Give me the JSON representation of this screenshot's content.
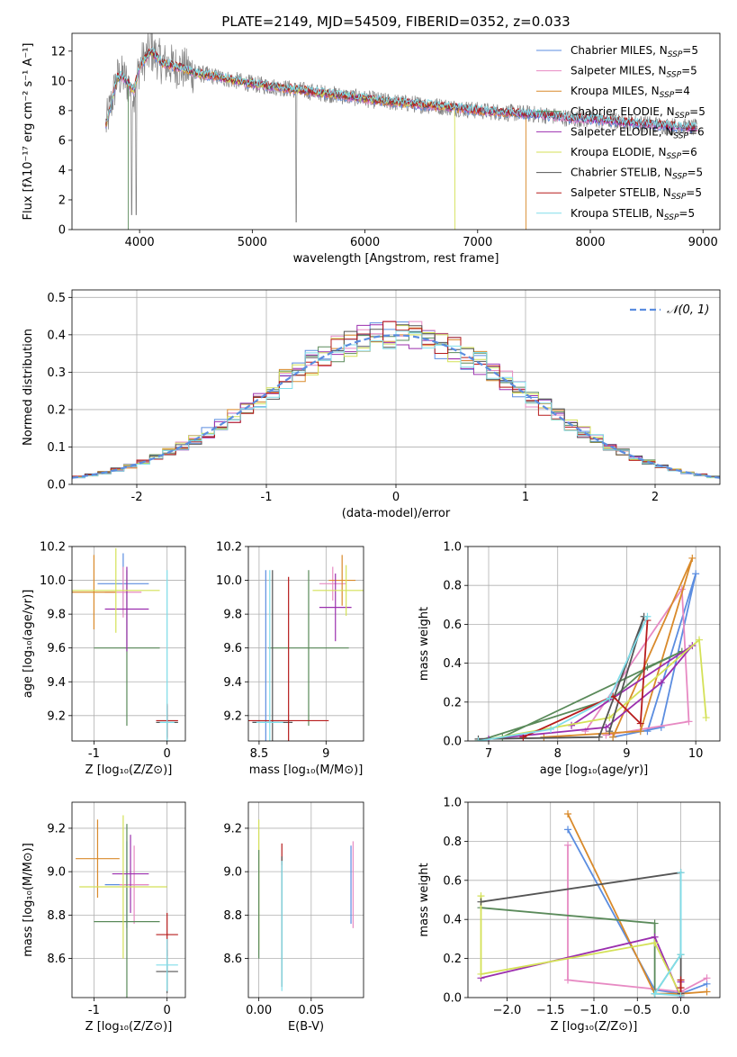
{
  "colors": {
    "chabrier_miles": "#5b8de0",
    "salpeter_miles": "#e78ac3",
    "kroupa_miles": "#d98a2b",
    "chabrier_elodie": "#5a8a5a",
    "salpeter_elodie": "#9b2fae",
    "kroupa_elodie": "#d4e157",
    "chabrier_stelib": "#555555",
    "salpeter_stelib": "#b71c1c",
    "kroupa_stelib": "#80deea",
    "spectrum_data": "#808080",
    "gaussian": "#5b8de0"
  },
  "chart_data": [
    {
      "id": "spectrum",
      "type": "line",
      "title": "PLATE=2149, MJD=54509, FIBERID=0352, z=0.033",
      "xlabel": "wavelength [Angstrom, rest frame]",
      "ylabel": "Flux [fλ10⁻¹⁷ erg cm⁻² s⁻¹ A⁻¹]",
      "xlim": [
        3400,
        9150
      ],
      "ylim": [
        0,
        13.2
      ],
      "xticks": [
        4000,
        5000,
        6000,
        7000,
        8000,
        9000
      ],
      "yticks": [
        0,
        2,
        4,
        6,
        8,
        10,
        12
      ],
      "grid": false,
      "legend_position": "top-right",
      "legend": [
        {
          "label": "Chabrier MILES, N",
          "sub": "SSP",
          "suffix": "=5",
          "color_key": "chabrier_miles"
        },
        {
          "label": "Salpeter MILES, N",
          "sub": "SSP",
          "suffix": "=5",
          "color_key": "salpeter_miles"
        },
        {
          "label": "Kroupa MILES, N",
          "sub": "SSP",
          "suffix": "=4",
          "color_key": "kroupa_miles"
        },
        {
          "label": "Chabrier ELODIE, N",
          "sub": "SSP",
          "suffix": "=5",
          "color_key": "chabrier_elodie"
        },
        {
          "label": "Salpeter ELODIE, N",
          "sub": "SSP",
          "suffix": "=6",
          "color_key": "salpeter_elodie"
        },
        {
          "label": "Kroupa ELODIE, N",
          "sub": "SSP",
          "suffix": "=6",
          "color_key": "kroupa_elodie"
        },
        {
          "label": "Chabrier STELIB, N",
          "sub": "SSP",
          "suffix": "=5",
          "color_key": "chabrier_stelib"
        },
        {
          "label": "Salpeter STELIB, N",
          "sub": "SSP",
          "suffix": "=5",
          "color_key": "salpeter_stelib"
        },
        {
          "label": "Kroupa STELIB, N",
          "sub": "SSP",
          "suffix": "=5",
          "color_key": "kroupa_stelib"
        }
      ],
      "model_curve": {
        "x": [
          3700,
          3750,
          3800,
          3850,
          3900,
          3950,
          4000,
          4100,
          4200,
          4300,
          4400,
          4500,
          4600,
          4800,
          5000,
          5200,
          5500,
          5800,
          6000,
          6200,
          6500,
          6800,
          7000,
          7200,
          7400,
          7600,
          7800,
          8000,
          8200,
          8500,
          8800,
          9000
        ],
        "y": [
          7.0,
          8.5,
          10.2,
          10.3,
          9.8,
          9.3,
          11.0,
          12.0,
          11.2,
          11.0,
          10.8,
          10.5,
          10.4,
          10.1,
          9.8,
          9.6,
          9.3,
          9.0,
          8.8,
          8.6,
          8.4,
          8.2,
          8.0,
          7.9,
          7.8,
          7.7,
          7.5,
          7.4,
          7.3,
          7.1,
          6.9,
          6.8
        ]
      },
      "cutoffs": [
        {
          "x": 7430,
          "color_key": "kroupa_miles"
        },
        {
          "x": 6800,
          "color_key": "kroupa_elodie"
        },
        {
          "x": 3900,
          "color_key": "chabrier_elodie"
        }
      ]
    },
    {
      "id": "residuals",
      "type": "histogram",
      "xlabel": "(data-model)/error",
      "ylabel": "Normed distribution",
      "xlim": [
        -2.5,
        2.5
      ],
      "ylim": [
        0,
        0.52
      ],
      "xticks": [
        -2,
        -1,
        0,
        1,
        2
      ],
      "yticks": [
        0.0,
        0.1,
        0.2,
        0.3,
        0.4,
        0.5
      ],
      "grid": true,
      "legend_position": "top-right",
      "legend": [
        {
          "label": "𝒩(0, 1)",
          "color_key": "gaussian",
          "style": "dashed"
        }
      ],
      "bin_width": 0.1
    },
    {
      "id": "age_vs_Z",
      "type": "errorbar",
      "xlabel": "Z [log₁₀(Z/Z⊙)]",
      "ylabel": "age  [log₁₀(age/yr)]",
      "xlim": [
        -1.3,
        0.25
      ],
      "ylim": [
        9.05,
        10.2
      ],
      "xticks": [
        -1,
        0
      ],
      "yticks": [
        9.2,
        9.4,
        9.6,
        9.8,
        10.0,
        10.2
      ],
      "grid": true,
      "points": [
        {
          "x": -0.6,
          "xe": 0.35,
          "y": 9.98,
          "ye": 0.18,
          "color_key": "chabrier_miles"
        },
        {
          "x": -0.6,
          "xe": 0.25,
          "y": 9.93,
          "ye": 0.15,
          "color_key": "salpeter_miles"
        },
        {
          "x": -1.0,
          "xe": 0.3,
          "y": 9.93,
          "ye": 0.22,
          "color_key": "kroupa_miles"
        },
        {
          "x": -0.55,
          "xe": 0.45,
          "y": 9.6,
          "ye": 0.46,
          "color_key": "chabrier_elodie"
        },
        {
          "x": -0.55,
          "xe": 0.3,
          "y": 9.83,
          "ye": 0.25,
          "color_key": "salpeter_elodie"
        },
        {
          "x": -0.7,
          "xe": 0.6,
          "y": 9.94,
          "ye": 0.25,
          "color_key": "kroupa_elodie"
        },
        {
          "x": 0.0,
          "xe": 0.15,
          "y": 9.16,
          "ye": 0.1,
          "color_key": "chabrier_stelib"
        },
        {
          "x": 0.0,
          "xe": 0.15,
          "y": 9.17,
          "ye": 0.1,
          "color_key": "salpeter_stelib"
        },
        {
          "x": 0.0,
          "xe": 0.1,
          "y": 9.16,
          "ye": 0.9,
          "color_key": "kroupa_stelib"
        }
      ]
    },
    {
      "id": "age_vs_mass",
      "type": "errorbar",
      "xlabel": "mass [log₁₀(M/M⊙)]",
      "ylabel": "",
      "xlim": [
        8.42,
        9.28
      ],
      "ylim": [
        9.05,
        10.2
      ],
      "xticks": [
        8.5,
        9.0
      ],
      "yticks": [
        9.2,
        9.4,
        9.6,
        9.8,
        10.0,
        10.2
      ],
      "grid": true,
      "points": [
        {
          "x": 8.55,
          "xe": 0.1,
          "y": 9.16,
          "ye": 0.9,
          "color_key": "chabrier_miles"
        },
        {
          "x": 9.05,
          "xe": 0.1,
          "y": 9.98,
          "ye": 0.1,
          "color_key": "salpeter_miles"
        },
        {
          "x": 9.12,
          "xe": 0.1,
          "y": 10.0,
          "ye": 0.15,
          "color_key": "kroupa_miles"
        },
        {
          "x": 8.87,
          "xe": 0.3,
          "y": 9.6,
          "ye": 0.46,
          "color_key": "chabrier_elodie"
        },
        {
          "x": 9.07,
          "xe": 0.12,
          "y": 9.84,
          "ye": 0.2,
          "color_key": "salpeter_elodie"
        },
        {
          "x": 9.15,
          "xe": 0.25,
          "y": 9.94,
          "ye": 0.15,
          "color_key": "kroupa_elodie"
        },
        {
          "x": 8.6,
          "xe": 0.15,
          "y": 9.16,
          "ye": 0.9,
          "color_key": "chabrier_stelib"
        },
        {
          "x": 8.72,
          "xe": 0.3,
          "y": 9.17,
          "ye": 0.85,
          "color_key": "salpeter_stelib"
        },
        {
          "x": 8.58,
          "xe": 0.1,
          "y": 9.16,
          "ye": 0.9,
          "color_key": "kroupa_stelib"
        }
      ]
    },
    {
      "id": "weight_vs_age",
      "type": "line",
      "xlabel": "age  [log₁₀(age/yr)]",
      "ylabel": "mass weight",
      "xlim": [
        6.7,
        10.35
      ],
      "ylim": [
        0,
        1.0
      ],
      "xticks": [
        7,
        8,
        9,
        10
      ],
      "yticks": [
        0.0,
        0.2,
        0.4,
        0.6,
        0.8,
        1.0
      ],
      "grid": true,
      "series": [
        {
          "color_key": "chabrier_miles",
          "x": [
            8.8,
            9.5,
            10.0,
            9.3
          ],
          "y": [
            0.02,
            0.07,
            0.86,
            0.05
          ]
        },
        {
          "color_key": "salpeter_miles",
          "x": [
            8.7,
            9.9,
            9.8,
            8.4
          ],
          "y": [
            0.03,
            0.1,
            0.78,
            0.05
          ]
        },
        {
          "color_key": "kroupa_miles",
          "x": [
            8.8,
            9.95,
            9.2,
            7.8
          ],
          "y": [
            0.02,
            0.94,
            0.05,
            0.02
          ]
        },
        {
          "color_key": "chabrier_elodie",
          "x": [
            6.85,
            8.8,
            9.3,
            9.8,
            7.2
          ],
          "y": [
            0.0,
            0.22,
            0.38,
            0.46,
            0.02
          ]
        },
        {
          "color_key": "salpeter_elodie",
          "x": [
            7.0,
            8.7,
            9.5,
            9.95,
            8.2
          ],
          "y": [
            0.01,
            0.07,
            0.3,
            0.49,
            0.08
          ]
        },
        {
          "color_key": "kroupa_elodie",
          "x": [
            6.85,
            8.75,
            10.05,
            10.15
          ],
          "y": [
            0.0,
            0.12,
            0.52,
            0.12
          ]
        },
        {
          "color_key": "chabrier_stelib",
          "x": [
            6.85,
            8.6,
            9.25,
            8.75
          ],
          "y": [
            0.01,
            0.02,
            0.64,
            0.05
          ]
        },
        {
          "color_key": "salpeter_stelib",
          "x": [
            7.5,
            8.8,
            9.2,
            9.3
          ],
          "y": [
            0.02,
            0.23,
            0.09,
            0.62
          ]
        },
        {
          "color_key": "kroupa_stelib",
          "x": [
            6.85,
            7.9,
            8.75,
            9.3
          ],
          "y": [
            0.0,
            0.06,
            0.22,
            0.64
          ]
        }
      ]
    },
    {
      "id": "mass_vs_Z",
      "type": "errorbar",
      "xlabel": "Z [log₁₀(Z/Z⊙)]",
      "ylabel": "mass [log₁₀(M/M⊙)]",
      "xlim": [
        -1.3,
        0.25
      ],
      "ylim": [
        8.42,
        9.32
      ],
      "xticks": [
        -1,
        0
      ],
      "yticks": [
        8.6,
        8.8,
        9.0,
        9.2
      ],
      "grid": true,
      "points": [
        {
          "x": -0.55,
          "xe": 0.3,
          "y": 8.94,
          "ye": 0.2,
          "color_key": "chabrier_miles"
        },
        {
          "x": -0.45,
          "xe": 0.2,
          "y": 8.94,
          "ye": 0.18,
          "color_key": "salpeter_miles"
        },
        {
          "x": -0.95,
          "xe": 0.3,
          "y": 9.06,
          "ye": 0.18,
          "color_key": "kroupa_miles"
        },
        {
          "x": -0.55,
          "xe": 0.45,
          "y": 8.77,
          "ye": 0.45,
          "color_key": "chabrier_elodie"
        },
        {
          "x": -0.5,
          "xe": 0.25,
          "y": 8.99,
          "ye": 0.18,
          "color_key": "salpeter_elodie"
        },
        {
          "x": -0.6,
          "xe": 0.6,
          "y": 8.93,
          "ye": 0.33,
          "color_key": "kroupa_elodie"
        },
        {
          "x": 0.0,
          "xe": 0.15,
          "y": 8.54,
          "ye": 0.1,
          "color_key": "chabrier_stelib"
        },
        {
          "x": 0.0,
          "xe": 0.15,
          "y": 8.71,
          "ye": 0.1,
          "color_key": "salpeter_stelib"
        },
        {
          "x": 0.0,
          "xe": 0.15,
          "y": 8.57,
          "ye": 0.12,
          "color_key": "kroupa_stelib"
        }
      ]
    },
    {
      "id": "mass_vs_ebv",
      "type": "errorbar",
      "xlabel": "E(B-V)",
      "ylabel": "",
      "xlim": [
        -0.01,
        0.1
      ],
      "ylim": [
        8.42,
        9.32
      ],
      "xticks": [
        0.0,
        0.05
      ],
      "xtick_labels": [
        "0.00",
        "0.05"
      ],
      "yticks": [
        8.6,
        8.8,
        9.0,
        9.2
      ],
      "grid": true,
      "points": [
        {
          "x": 0.0,
          "xe": 0,
          "y": 8.94,
          "ye": 0.3,
          "color_key": "kroupa_elodie"
        },
        {
          "x": 0.0,
          "xe": 0,
          "y": 8.85,
          "ye": 0.25,
          "color_key": "chabrier_elodie"
        },
        {
          "x": 0.022,
          "xe": 0,
          "y": 9.08,
          "ye": 0.05,
          "color_key": "salpeter_stelib"
        },
        {
          "x": 0.022,
          "xe": 0,
          "y": 8.77,
          "ye": 0.3,
          "color_key": "chabrier_stelib"
        },
        {
          "x": 0.022,
          "xe": 0,
          "y": 8.75,
          "ye": 0.3,
          "color_key": "kroupa_stelib"
        },
        {
          "x": 0.088,
          "xe": 0,
          "y": 8.94,
          "ye": 0.18,
          "color_key": "chabrier_miles"
        },
        {
          "x": 0.09,
          "xe": 0,
          "y": 8.94,
          "ye": 0.2,
          "color_key": "salpeter_miles"
        }
      ]
    },
    {
      "id": "weight_vs_Z",
      "type": "line",
      "xlabel": "Z [log₁₀(Z/Z⊙)]",
      "ylabel": "mass weight",
      "xlim": [
        -2.45,
        0.45
      ],
      "ylim": [
        0,
        1.0
      ],
      "xticks": [
        -2.0,
        -1.5,
        -1.0,
        -0.5,
        0.0
      ],
      "xtick_labels": [
        "−2.0",
        "−1.5",
        "−1.0",
        "−0.5",
        "0.0"
      ],
      "yticks": [
        0.0,
        0.2,
        0.4,
        0.6,
        0.8,
        1.0
      ],
      "grid": true,
      "series": [
        {
          "color_key": "chabrier_miles",
          "x": [
            -1.3,
            -0.3,
            0.0,
            0.3
          ],
          "y": [
            0.86,
            0.04,
            0.02,
            0.07
          ]
        },
        {
          "color_key": "salpeter_miles",
          "x": [
            -1.3,
            -1.3,
            0.0,
            0.3
          ],
          "y": [
            0.78,
            0.09,
            0.03,
            0.1
          ]
        },
        {
          "color_key": "kroupa_miles",
          "x": [
            -1.3,
            -0.3,
            0.0,
            0.3
          ],
          "y": [
            0.94,
            0.02,
            0.02,
            0.03
          ]
        },
        {
          "color_key": "chabrier_elodie",
          "x": [
            -2.3,
            -0.3,
            -0.3,
            0.0
          ],
          "y": [
            0.46,
            0.38,
            0.02,
            0.22
          ]
        },
        {
          "color_key": "salpeter_elodie",
          "x": [
            -2.3,
            -0.3,
            0.0,
            0.0
          ],
          "y": [
            0.1,
            0.31,
            0.0,
            0.08
          ]
        },
        {
          "color_key": "kroupa_elodie",
          "x": [
            -2.3,
            -2.3,
            -0.3,
            0.0
          ],
          "y": [
            0.52,
            0.12,
            0.28,
            0.01
          ]
        },
        {
          "color_key": "chabrier_stelib",
          "x": [
            -2.3,
            0.0,
            0.0
          ],
          "y": [
            0.49,
            0.64,
            0.02
          ]
        },
        {
          "color_key": "salpeter_stelib",
          "x": [
            0.0,
            0.0,
            0.0
          ],
          "y": [
            0.09,
            0.01,
            0.05
          ]
        },
        {
          "color_key": "kroupa_stelib",
          "x": [
            0.0,
            0.0,
            -0.3,
            0.0
          ],
          "y": [
            0.64,
            0.22,
            0.02,
            0.01
          ]
        }
      ]
    }
  ]
}
